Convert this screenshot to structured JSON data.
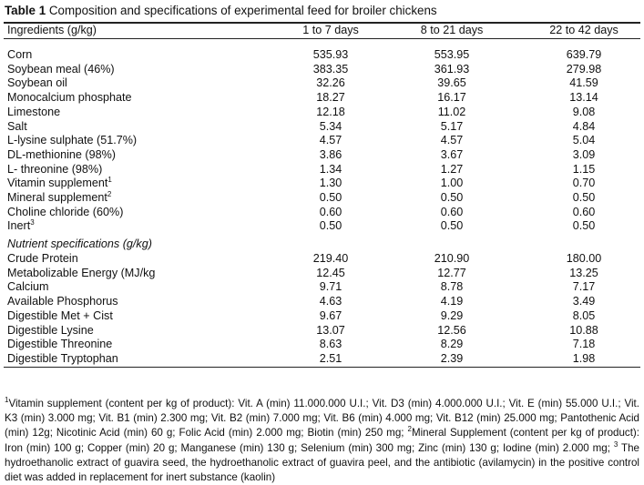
{
  "table": {
    "label": "Table 1",
    "caption": "Composition and specifications of experimental feed for broiler chickens",
    "headers": [
      "Ingredients (g/kg)",
      "1 to 7 days",
      "8 to 21 days",
      "22 to 42 days"
    ],
    "ingredients": [
      {
        "name": "Corn",
        "sup": "",
        "v": [
          "535.93",
          "553.95",
          "639.79"
        ]
      },
      {
        "name": "Soybean meal (46%)",
        "sup": "",
        "v": [
          "383.35",
          "361.93",
          "279.98"
        ]
      },
      {
        "name": "Soybean oil",
        "sup": "",
        "v": [
          "32.26",
          "39.65",
          "41.59"
        ]
      },
      {
        "name": "Monocalcium phosphate",
        "sup": "",
        "v": [
          "18.27",
          "16.17",
          "13.14"
        ]
      },
      {
        "name": "Limestone",
        "sup": "",
        "v": [
          "12.18",
          "11.02",
          "9.08"
        ]
      },
      {
        "name": "Salt",
        "sup": "",
        "v": [
          "5.34",
          "5.17",
          "4.84"
        ]
      },
      {
        "name": "L-lysine sulphate (51.7%)",
        "sup": "",
        "v": [
          "4.57",
          "4.57",
          "5.04"
        ]
      },
      {
        "name": "DL-methionine (98%)",
        "sup": "",
        "v": [
          "3.86",
          "3.67",
          "3.09"
        ]
      },
      {
        "name": "L- threonine (98%)",
        "sup": "",
        "v": [
          "1.34",
          "1.27",
          "1.15"
        ]
      },
      {
        "name": "Vitamin supplement",
        "sup": "1",
        "v": [
          "1.30",
          "1.00",
          "0.70"
        ]
      },
      {
        "name": "Mineral supplement",
        "sup": "2",
        "v": [
          "0.50",
          "0.50",
          "0.50"
        ]
      },
      {
        "name": "Choline chloride (60%)",
        "sup": "",
        "v": [
          "0.60",
          "0.60",
          "0.60"
        ]
      },
      {
        "name": "Inert",
        "sup": "3",
        "v": [
          "0.50",
          "0.50",
          "0.50"
        ]
      }
    ],
    "nutrient_heading": "Nutrient specifications (g/kg)",
    "nutrients": [
      {
        "name": "Crude Protein",
        "sup": "",
        "v": [
          "219.40",
          "210.90",
          "180.00"
        ]
      },
      {
        "name": "Metabolizable Energy (MJ/kg",
        "sup": "",
        "v": [
          "12.45",
          "12.77",
          "13.25"
        ]
      },
      {
        "name": "Calcium",
        "sup": "",
        "v": [
          "9.71",
          "8.78",
          "7.17"
        ]
      },
      {
        "name": "Available Phosphorus",
        "sup": "",
        "v": [
          "4.63",
          "4.19",
          "3.49"
        ]
      },
      {
        "name": "Digestible Met + Cist",
        "sup": "",
        "v": [
          "9.67",
          "9.29",
          "8.05"
        ]
      },
      {
        "name": "Digestible Lysine",
        "sup": "",
        "v": [
          "13.07",
          "12.56",
          "10.88"
        ]
      },
      {
        "name": "Digestible Threonine",
        "sup": "",
        "v": [
          "8.63",
          "8.29",
          "7.18"
        ]
      },
      {
        "name": "Digestible Tryptophan",
        "sup": "",
        "v": [
          "2.51",
          "2.39",
          "1.98"
        ]
      }
    ],
    "footnote": {
      "sup1": "1",
      "text1": "Vitamin supplement (content per kg of product): Vit. A (min) 11.000.000 U.I.; Vit. D3 (min) 4.000.000 U.I.; Vit. E (min) 55.000 U.I.; Vit. K3 (min) 3.000 mg; Vit. B1 (min) 2.300 mg; Vit. B2 (min) 7.000 mg; Vit. B6 (min) 4.000 mg; Vit. B12 (min) 25.000 mg; Pantothenic Acid (min) 12g; Nicotinic Acid (min) 60 g; Folic Acid (min) 2.000 mg; Biotin (min) 250 mg; ",
      "sup2": "2",
      "text2": "Mineral Supplement (content per kg of product): Iron (min) 100 g; Copper (min) 20 g; Manganese (min) 130 g; Selenium (min) 300 mg; Zinc (min) 130 g; Iodine (min) 2.000 mg; ",
      "sup3": "3",
      "text3": " The hydroethanolic extract of guavira seed, the hydroethanolic extract of guavira peel, and the antibiotic (avilamycin) in the positive control diet was added in replacement for inert substance (kaolin)"
    }
  }
}
